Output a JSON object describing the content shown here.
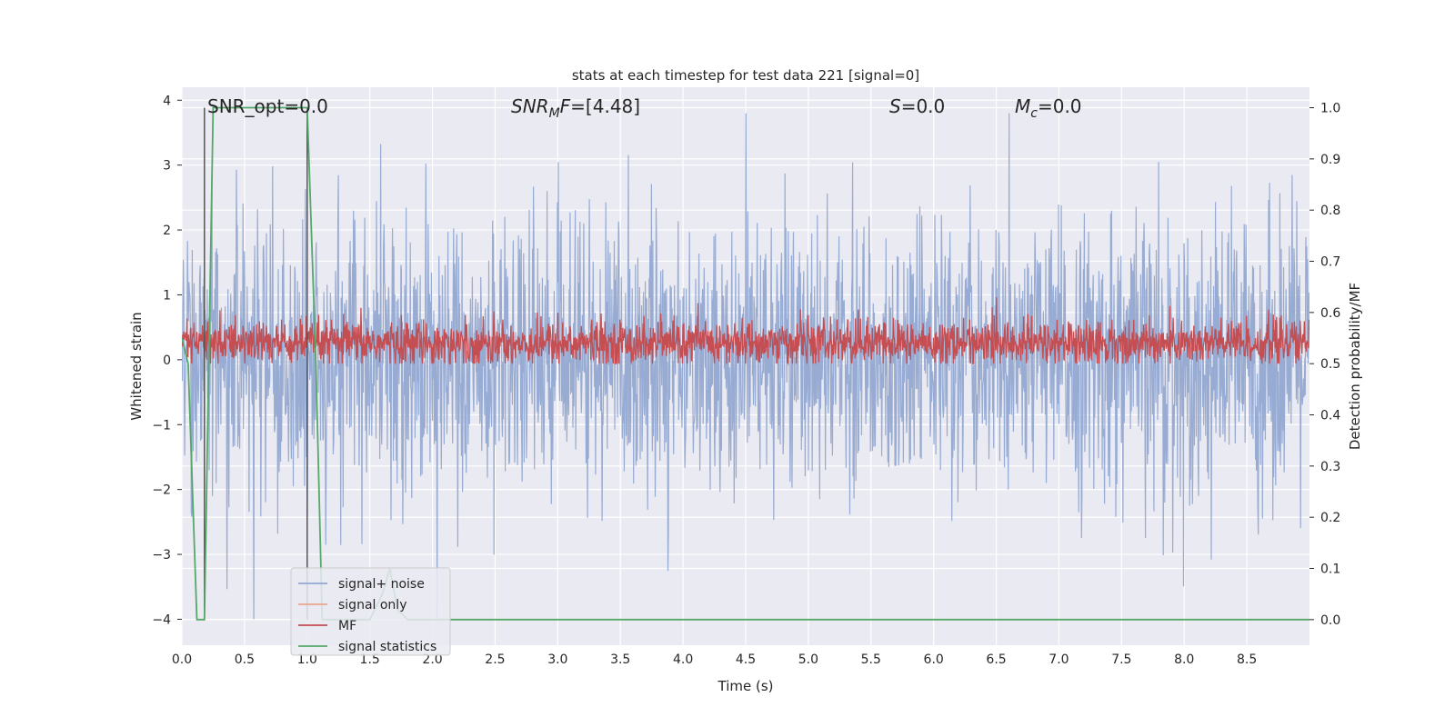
{
  "chart_data": {
    "type": "line",
    "title": "stats at each timestep for test data 221 [signal=0]",
    "xlabel": "Time (s)",
    "ylabel": "Whitened strain",
    "ylabel_right": "Detection probability/MF",
    "xlim": [
      0.0,
      9.0
    ],
    "ylim": [
      -4.4,
      4.2
    ],
    "ylim_right": [
      -0.05,
      1.04
    ],
    "x_ticks": [
      0.0,
      0.5,
      1.0,
      1.5,
      2.0,
      2.5,
      3.0,
      3.5,
      4.0,
      4.5,
      5.0,
      5.5,
      6.0,
      6.5,
      7.0,
      7.5,
      8.0,
      8.5
    ],
    "y_ticks": [
      4,
      3,
      2,
      1,
      0,
      -1,
      -2,
      -3,
      -4
    ],
    "y_ticks_right": [
      1.0,
      0.9,
      0.8,
      0.7,
      0.6,
      0.5,
      0.4,
      0.3,
      0.2,
      0.1,
      0.0
    ],
    "grid": true,
    "legend_position": "lower-left",
    "annotations": [
      {
        "id": "snr-opt",
        "text": "SNR_opt=0.0"
      },
      {
        "id": "snr-mf",
        "text": "SNR_M F=[4.48]"
      },
      {
        "id": "s-val",
        "text": "S=0.0"
      },
      {
        "id": "mc-val",
        "text": "M_c=0.0"
      }
    ],
    "series": [
      {
        "name": "signal+ noise",
        "color": "#92a8d1",
        "axis": "left",
        "approx_range": [
          -4.0,
          3.8
        ]
      },
      {
        "name": "signal only",
        "color": "#e8a58c",
        "axis": "left",
        "values": []
      },
      {
        "name": "MF",
        "color": "#c44e52",
        "axis": "right",
        "approx_range": [
          0.5,
          0.63
        ]
      },
      {
        "name": "signal statistics",
        "color": "#55a868",
        "axis": "right",
        "x": [
          0.0,
          0.05,
          0.12,
          0.18,
          0.25,
          0.9,
          1.0,
          1.07,
          1.12,
          1.5,
          1.6,
          1.66,
          1.72,
          1.8,
          9.0
        ],
        "y": [
          0.55,
          0.5,
          0.0,
          0.0,
          1.0,
          1.0,
          1.0,
          0.5,
          0.0,
          0.0,
          0.05,
          0.1,
          0.02,
          0.0,
          0.0
        ]
      }
    ],
    "vertical_lines": [
      {
        "color": "#555555",
        "x": 0.18,
        "y_range": [
          0.0,
          1.0
        ]
      },
      {
        "color": "#555555",
        "x": 1.0,
        "y_range": [
          0.0,
          1.0
        ]
      }
    ]
  }
}
